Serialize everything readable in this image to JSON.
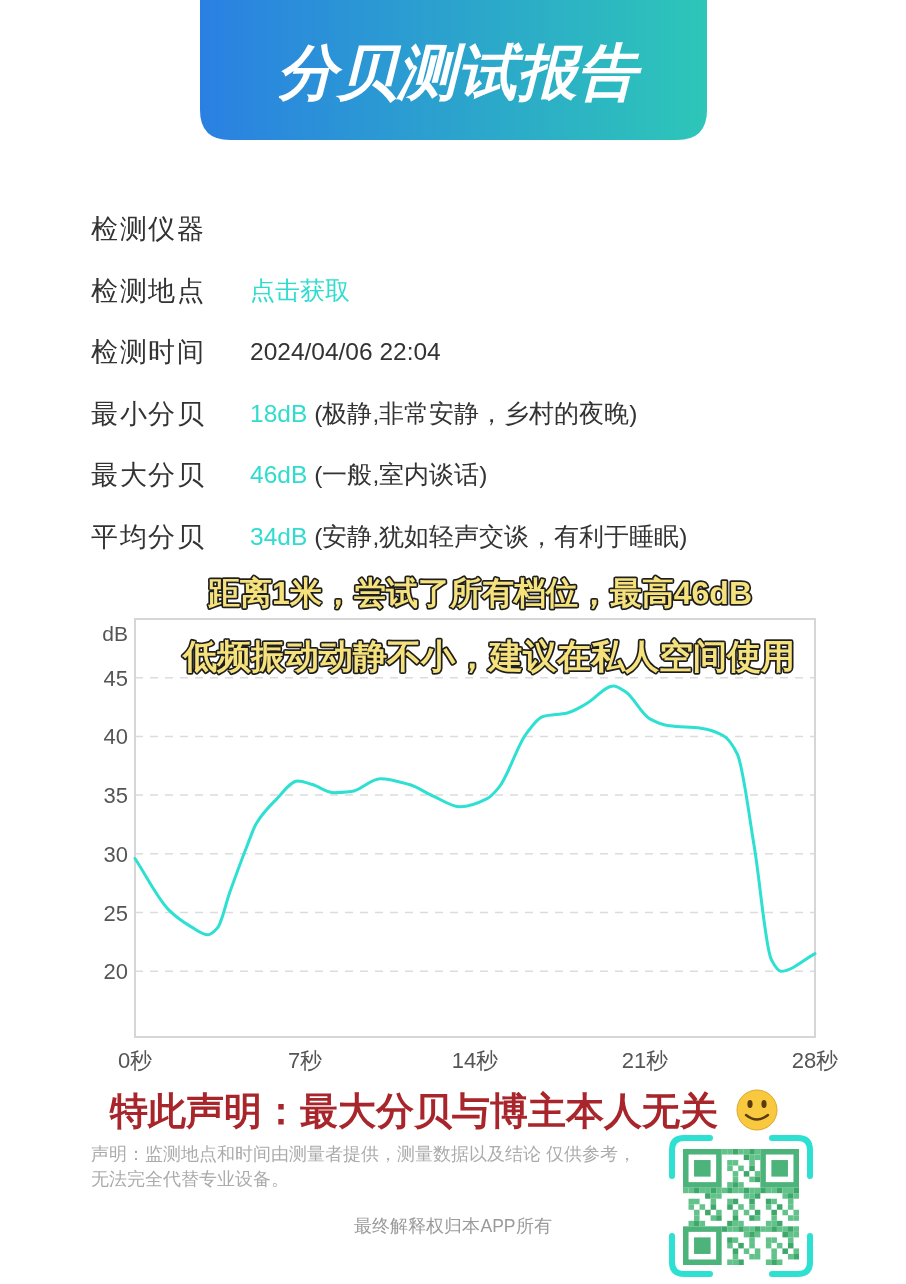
{
  "chart_data": {
    "type": "line",
    "title": "分贝测试报告",
    "ylabel": "dB",
    "annotations": [
      "检测仪器",
      "检测地点",
      "点击获取",
      "检测时间",
      "2024/04/06 22:04",
      "最小分贝",
      "18dB",
      "(极静,非常安静，乡村的夜晚)",
      "最大分贝",
      "46dB",
      "(一般,室内谈话)",
      "平均分贝",
      "34dB",
      "(安静,犹如轻声交谈，有利于睡眠)",
      "距离1米，尝试了所有档位，最高46dB",
      "低频振动动静不小，建议在私人空间使用",
      "特此声明：最大分贝与博主本人无关",
      "声明：监测地点和时间由测量者提供，测量数据以及结论 仅供参考，无法完全代替专业设备。",
      "最终解释权归本APP所有"
    ],
    "x": [
      0,
      1.4,
      2.3,
      3.0,
      3.4,
      3.9,
      4.6,
      5.0,
      5.8,
      6.7,
      7.3,
      8.2,
      8.9,
      10.1,
      11.3,
      12.3,
      13.4,
      14.5,
      15.0,
      16.1,
      16.8,
      17.8,
      18.6,
      19.7,
      20.2,
      21.2,
      22.0,
      23.3,
      24.2,
      24.8,
      25.5,
      26.2,
      26.6,
      28
    ],
    "series": [
      {
        "color": "#2de0d2",
        "values": [
          29.6,
          25.2,
          23.8,
          23.1,
          23.7,
          26.7,
          30.6,
          32.6,
          34.6,
          36.2,
          35.9,
          35.2,
          35.3,
          36.4,
          35.9,
          34.9,
          34.0,
          34.7,
          35.7,
          40.2,
          41.7,
          42.0,
          42.8,
          44.3,
          43.8,
          41.5,
          40.9,
          40.7,
          40.1,
          38.5,
          30.6,
          21.0,
          20.0,
          21.5
        ]
      }
    ],
    "xlim": [
      0,
      28
    ],
    "xticks": [
      {
        "value": 0,
        "label": "0秒"
      },
      {
        "value": 7,
        "label": "7秒"
      },
      {
        "value": 14,
        "label": "14秒"
      },
      {
        "value": 21,
        "label": "21秒"
      },
      {
        "value": 28,
        "label": "28秒"
      }
    ],
    "ylim": [
      14.4,
      50
    ],
    "yticks": [
      20,
      25,
      30,
      35,
      40,
      45
    ],
    "grid": "y",
    "line_style": "solid"
  }
}
